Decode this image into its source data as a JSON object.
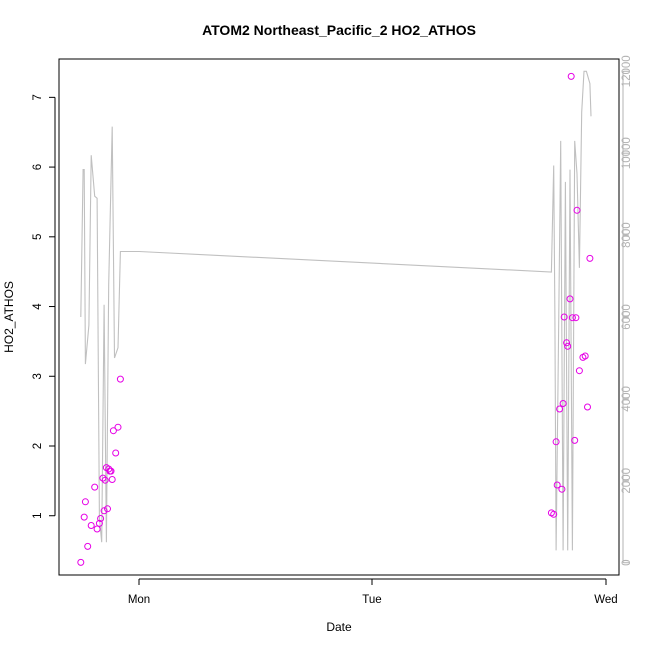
{
  "chart_data": {
    "type": "scatter",
    "title": "ATOM2 Northeast_Pacific_2 HO2_ATHOS",
    "xlabel": "Date",
    "ylabel": "HO2_ATHOS",
    "x_ticks": [
      "Mon",
      "Tue",
      "Wed"
    ],
    "ylim": [
      0.15,
      7.55
    ],
    "y_ticks": [
      1,
      2,
      3,
      4,
      5,
      6,
      7
    ],
    "y2lim": [
      -300,
      12300
    ],
    "y2_ticks": [
      0,
      2000,
      4000,
      6000,
      8000,
      10000,
      12000
    ],
    "grid": false,
    "colors": {
      "points": "#e600e6",
      "line": "#c0c0c0",
      "axis": "#000000",
      "right_axis": "#b3b3b3"
    },
    "series": [
      {
        "type": "scatter",
        "points": [
          [
            -0.25,
            0.33
          ],
          [
            -0.235,
            0.98
          ],
          [
            -0.23,
            1.2
          ],
          [
            -0.22,
            0.56
          ],
          [
            -0.205,
            0.86
          ],
          [
            -0.19,
            1.41
          ],
          [
            -0.18,
            0.81
          ],
          [
            -0.17,
            0.89
          ],
          [
            -0.165,
            0.96
          ],
          [
            -0.155,
            1.54
          ],
          [
            -0.15,
            1.07
          ],
          [
            -0.145,
            1.51
          ],
          [
            -0.14,
            1.69
          ],
          [
            -0.135,
            1.1
          ],
          [
            -0.13,
            1.67
          ],
          [
            -0.125,
            1.64
          ],
          [
            -0.12,
            1.64
          ],
          [
            -0.115,
            1.52
          ],
          [
            -0.11,
            2.22
          ],
          [
            -0.1,
            1.9
          ],
          [
            -0.09,
            2.27
          ],
          [
            -0.08,
            2.96
          ],
          [
            1.77,
            1.04
          ],
          [
            1.78,
            1.02
          ],
          [
            1.79,
            2.06
          ],
          [
            1.795,
            1.44
          ],
          [
            1.805,
            2.53
          ],
          [
            1.815,
            1.38
          ],
          [
            1.82,
            2.61
          ],
          [
            1.825,
            3.85
          ],
          [
            1.835,
            3.48
          ],
          [
            1.84,
            3.43
          ],
          [
            1.85,
            4.11
          ],
          [
            1.855,
            7.3
          ],
          [
            1.86,
            3.84
          ],
          [
            1.87,
            2.08
          ],
          [
            1.875,
            3.84
          ],
          [
            1.88,
            5.38
          ],
          [
            1.89,
            3.08
          ],
          [
            1.905,
            3.27
          ],
          [
            1.915,
            3.29
          ],
          [
            1.925,
            2.56
          ],
          [
            1.935,
            4.69
          ]
        ]
      },
      {
        "type": "line",
        "axis": "right",
        "points": [
          [
            -0.25,
            6000
          ],
          [
            -0.24,
            9600
          ],
          [
            -0.235,
            9600
          ],
          [
            -0.23,
            4850
          ],
          [
            -0.215,
            5800
          ],
          [
            -0.205,
            9950
          ],
          [
            -0.19,
            8950
          ],
          [
            -0.18,
            8900
          ],
          [
            -0.17,
            1100
          ],
          [
            -0.16,
            500
          ],
          [
            -0.15,
            6300
          ],
          [
            -0.14,
            500
          ],
          [
            -0.13,
            6800
          ],
          [
            -0.115,
            10650
          ],
          [
            -0.105,
            5000
          ],
          [
            -0.09,
            5250
          ],
          [
            -0.08,
            7600
          ],
          [
            0.0,
            7600
          ],
          [
            1.77,
            7100
          ],
          [
            1.78,
            9700
          ],
          [
            1.785,
            6000
          ],
          [
            1.79,
            300
          ],
          [
            1.8,
            5200
          ],
          [
            1.81,
            10300
          ],
          [
            1.82,
            300
          ],
          [
            1.83,
            9300
          ],
          [
            1.84,
            300
          ],
          [
            1.85,
            9600
          ],
          [
            1.86,
            300
          ],
          [
            1.87,
            10300
          ],
          [
            1.88,
            9500
          ],
          [
            1.89,
            7200
          ],
          [
            1.9,
            11000
          ],
          [
            1.91,
            12000
          ],
          [
            1.92,
            12000
          ],
          [
            1.935,
            11700
          ],
          [
            1.94,
            10900
          ]
        ]
      }
    ]
  }
}
